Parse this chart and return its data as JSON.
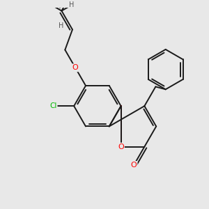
{
  "bg_color": "#e8e8e8",
  "bond_color": "#1a1a1a",
  "o_color": "#ff0000",
  "cl_color": "#00bb00",
  "h_color": "#555555",
  "lw": 1.4,
  "dbo": 0.12,
  "xlim": [
    -2.5,
    5.5
  ],
  "ylim": [
    -4.0,
    4.5
  ]
}
